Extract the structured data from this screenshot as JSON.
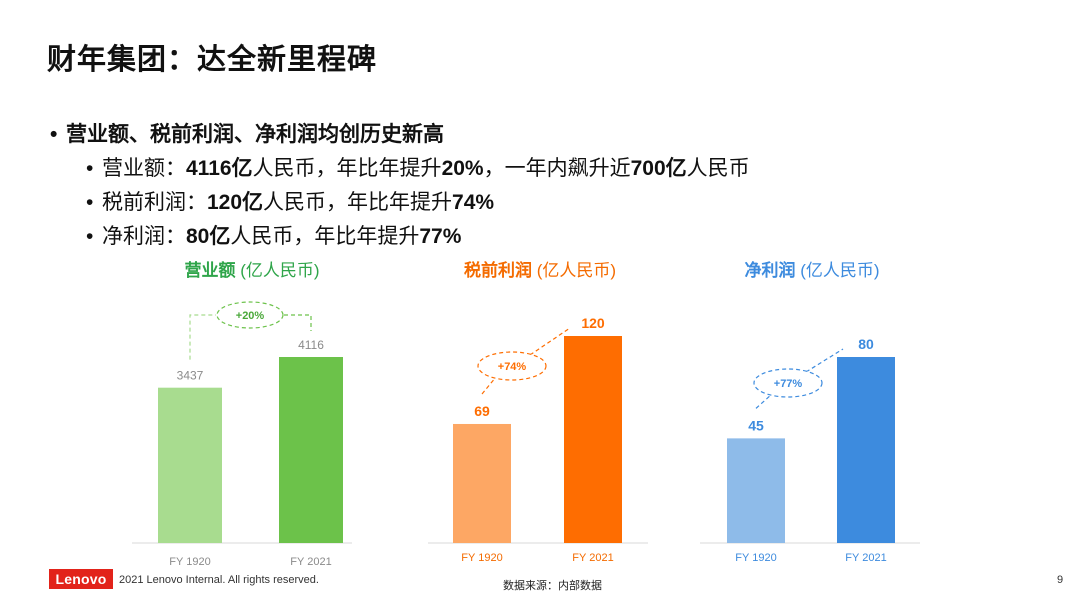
{
  "slide": {
    "title": "财年集团：达全新里程碑",
    "page_number": "9",
    "copyright": "2021 Lenovo Internal. All rights reserved.",
    "source": "数据来源：内部数据",
    "logo_text": "Lenovo"
  },
  "bullets": {
    "main": "营业额、税前利润、净利润均创历史新高",
    "items": [
      {
        "a": "营业额：",
        "b": "4116亿",
        "c": "人民币，年比年提升",
        "d": "20%",
        "e": "，一年内飙升近",
        "f": "700亿",
        "g": "人民币"
      },
      {
        "a": "税前利润：",
        "b": "120亿",
        "c": "人民币，年比年提升",
        "d": "74%"
      },
      {
        "a": "净利润：",
        "b": "80亿",
        "c": "人民币，年比年提升",
        "d": "77%"
      }
    ]
  },
  "colors": {
    "green_light": "#a8dc8f",
    "green": "#6cc24a",
    "orange_light": "#fda764",
    "orange": "#fe6d01",
    "blue_light": "#8ebbe9",
    "blue": "#3d8bde"
  },
  "chart_data": [
    {
      "type": "bar",
      "title": "营业额",
      "unit": "(亿人民币)",
      "categories": [
        "FY 1920",
        "FY 2021"
      ],
      "values": [
        3437,
        4116
      ],
      "change": "+20%",
      "ylim": [
        0,
        4600
      ]
    },
    {
      "type": "bar",
      "title": "税前利润",
      "unit": "(亿人民币)",
      "categories": [
        "FY 1920",
        "FY 2021"
      ],
      "values": [
        69,
        120
      ],
      "change": "+74%",
      "ylim": [
        0,
        130
      ]
    },
    {
      "type": "bar",
      "title": "净利润",
      "unit": "(亿人民币)",
      "categories": [
        "FY 1920",
        "FY 2021"
      ],
      "values": [
        45,
        80
      ],
      "change": "+77%",
      "ylim": [
        0,
        95
      ]
    }
  ]
}
